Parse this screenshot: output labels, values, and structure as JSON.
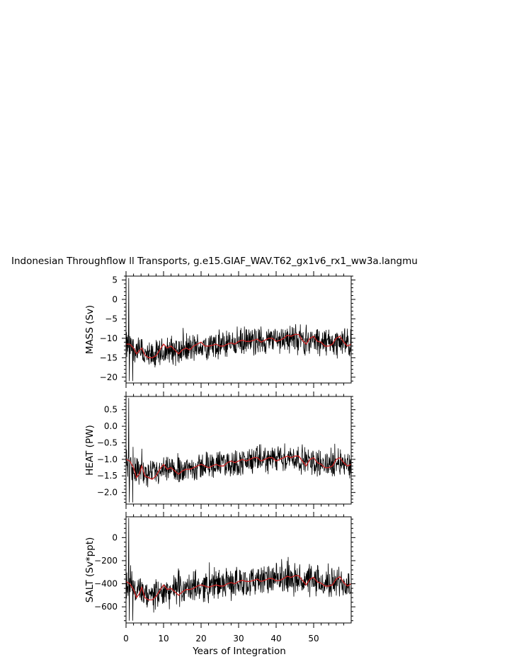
{
  "figure": {
    "title": "Indonesian Throughflow ll Transports, g.e15.GIAF_WAV.T62_gx1v6_rx1_ww3a.langmu",
    "xlabel": "Years of Integration"
  },
  "colors": {
    "raw": "#000000",
    "smooth": "#cc2222",
    "frame": "#000000",
    "background": "#ffffff"
  },
  "chart_data": [
    {
      "type": "line",
      "panel": "mass",
      "ylabel": "MASS (Sv)",
      "xlim": [
        0,
        60
      ],
      "ylim": [
        -21.5,
        6
      ],
      "xticks": [
        0,
        10,
        20,
        30,
        40,
        50
      ],
      "yticks": [
        5,
        0,
        -5,
        -10,
        -15,
        -20
      ],
      "ytick_labels": [
        "5",
        "0",
        "−5",
        "−10",
        "−15",
        "−20"
      ],
      "grid": false,
      "series": [
        {
          "style": "raw-monthly",
          "color": "#000000",
          "base": [
            [
              0,
              -12
            ],
            [
              3,
              -13
            ],
            [
              6,
              -15
            ],
            [
              9,
              -14
            ],
            [
              12,
              -13
            ],
            [
              15,
              -13
            ],
            [
              18,
              -12.5
            ],
            [
              21,
              -12
            ],
            [
              24,
              -12
            ],
            [
              27,
              -11.5
            ],
            [
              30,
              -11
            ],
            [
              33,
              -11
            ],
            [
              36,
              -10.5
            ],
            [
              39,
              -10.5
            ],
            [
              42,
              -10
            ],
            [
              45,
              -10
            ],
            [
              48,
              -10.5
            ],
            [
              51,
              -11
            ],
            [
              54,
              -11
            ],
            [
              57,
              -11
            ],
            [
              60,
              -11.5
            ]
          ],
          "amplitude": 4.5,
          "spikes": [
            [
              0.7,
              5.5
            ],
            [
              0.9,
              -21
            ],
            [
              1.8,
              -21
            ]
          ]
        },
        {
          "style": "smoothed",
          "color": "#cc2222",
          "points": [
            [
              0,
              -11.5
            ],
            [
              1,
              -11.5
            ],
            [
              2,
              -12.5
            ],
            [
              2.8,
              -14
            ],
            [
              3.5,
              -13.2
            ],
            [
              4.2,
              -12.5
            ],
            [
              5,
              -14.3
            ],
            [
              6,
              -15
            ],
            [
              7,
              -15
            ],
            [
              8,
              -14.5
            ],
            [
              9,
              -13
            ],
            [
              10,
              -11.5
            ],
            [
              11,
              -12.5
            ],
            [
              12,
              -12
            ],
            [
              13,
              -13
            ],
            [
              14,
              -14
            ],
            [
              15,
              -13
            ],
            [
              16,
              -12.5
            ],
            [
              17,
              -13
            ],
            [
              18,
              -12
            ],
            [
              19,
              -11.5
            ],
            [
              20,
              -11
            ],
            [
              21,
              -12
            ],
            [
              22,
              -12
            ],
            [
              23,
              -11.8
            ],
            [
              24,
              -11.5
            ],
            [
              25,
              -12
            ],
            [
              26,
              -12
            ],
            [
              27,
              -11.5
            ],
            [
              28,
              -11.2
            ],
            [
              29,
              -11.5
            ],
            [
              30,
              -10.8
            ],
            [
              31,
              -10.5
            ],
            [
              32,
              -10.8
            ],
            [
              33,
              -10.8
            ],
            [
              34,
              -10.5
            ],
            [
              35,
              -10.2
            ],
            [
              36,
              -11
            ],
            [
              37,
              -10.5
            ],
            [
              38,
              -10
            ],
            [
              39,
              -10
            ],
            [
              40,
              -10.8
            ],
            [
              41,
              -10.5
            ],
            [
              42,
              -10
            ],
            [
              43,
              -9.2
            ],
            [
              44,
              -9.5
            ],
            [
              45,
              -9
            ],
            [
              46,
              -9
            ],
            [
              47,
              -10.5
            ],
            [
              48,
              -11.5
            ],
            [
              49,
              -10
            ],
            [
              50,
              -9.5
            ],
            [
              51,
              -10.8
            ],
            [
              52,
              -11
            ],
            [
              53,
              -12
            ],
            [
              54,
              -12
            ],
            [
              55,
              -11.5
            ],
            [
              56,
              -10
            ],
            [
              57,
              -9.5
            ],
            [
              58,
              -11
            ],
            [
              59,
              -12
            ],
            [
              60,
              -11.5
            ]
          ]
        }
      ]
    },
    {
      "type": "line",
      "panel": "heat",
      "ylabel": "HEAT (PW)",
      "xlim": [
        0,
        60
      ],
      "ylim": [
        -2.35,
        0.9
      ],
      "xticks": [
        0,
        10,
        20,
        30,
        40,
        50
      ],
      "yticks": [
        0.5,
        0.0,
        -0.5,
        -1.0,
        -1.5,
        -2.0
      ],
      "ytick_labels": [
        "0.5",
        "0.0",
        "−0.5",
        "−1.0",
        "−1.5",
        "−2.0"
      ],
      "grid": false,
      "series": [
        {
          "style": "raw-monthly",
          "color": "#000000",
          "base": [
            [
              0,
              -1.1
            ],
            [
              3,
              -1.3
            ],
            [
              6,
              -1.5
            ],
            [
              9,
              -1.4
            ],
            [
              12,
              -1.35
            ],
            [
              15,
              -1.3
            ],
            [
              18,
              -1.25
            ],
            [
              21,
              -1.2
            ],
            [
              24,
              -1.15
            ],
            [
              27,
              -1.15
            ],
            [
              30,
              -1.1
            ],
            [
              33,
              -1.05
            ],
            [
              36,
              -1.0
            ],
            [
              39,
              -1.0
            ],
            [
              42,
              -0.95
            ],
            [
              45,
              -0.95
            ],
            [
              48,
              -1.05
            ],
            [
              51,
              -1.1
            ],
            [
              54,
              -1.15
            ],
            [
              57,
              -1.05
            ],
            [
              60,
              -1.2
            ]
          ],
          "amplitude": 0.5,
          "spikes": [
            [
              0.7,
              0.85
            ],
            [
              0.9,
              -2.3
            ],
            [
              1.8,
              -2.3
            ]
          ]
        },
        {
          "style": "smoothed",
          "color": "#cc2222",
          "points": [
            [
              0,
              -1.0
            ],
            [
              1,
              -1.05
            ],
            [
              2,
              -1.25
            ],
            [
              2.8,
              -1.55
            ],
            [
              3.5,
              -1.45
            ],
            [
              4.2,
              -1.2
            ],
            [
              5,
              -1.5
            ],
            [
              6,
              -1.55
            ],
            [
              7,
              -1.6
            ],
            [
              8,
              -1.5
            ],
            [
              9,
              -1.3
            ],
            [
              10,
              -1.15
            ],
            [
              11,
              -1.3
            ],
            [
              12,
              -1.25
            ],
            [
              13,
              -1.35
            ],
            [
              14,
              -1.45
            ],
            [
              15,
              -1.35
            ],
            [
              16,
              -1.3
            ],
            [
              17,
              -1.3
            ],
            [
              18,
              -1.25
            ],
            [
              19,
              -1.2
            ],
            [
              20,
              -1.15
            ],
            [
              21,
              -1.2
            ],
            [
              22,
              -1.25
            ],
            [
              23,
              -1.2
            ],
            [
              24,
              -1.15
            ],
            [
              25,
              -1.2
            ],
            [
              26,
              -1.2
            ],
            [
              27,
              -1.1
            ],
            [
              28,
              -1.05
            ],
            [
              29,
              -1.1
            ],
            [
              30,
              -1.05
            ],
            [
              31,
              -1.0
            ],
            [
              32,
              -1.05
            ],
            [
              33,
              -1.0
            ],
            [
              34,
              -0.95
            ],
            [
              35,
              -0.95
            ],
            [
              36,
              -1.05
            ],
            [
              37,
              -1.0
            ],
            [
              38,
              -0.95
            ],
            [
              39,
              -0.95
            ],
            [
              40,
              -1.05
            ],
            [
              41,
              -1.0
            ],
            [
              42,
              -0.95
            ],
            [
              43,
              -0.9
            ],
            [
              44,
              -0.95
            ],
            [
              45,
              -0.9
            ],
            [
              46,
              -0.9
            ],
            [
              47,
              -1.05
            ],
            [
              48,
              -1.2
            ],
            [
              49,
              -1.0
            ],
            [
              50,
              -0.95
            ],
            [
              51,
              -1.1
            ],
            [
              52,
              -1.15
            ],
            [
              53,
              -1.25
            ],
            [
              54,
              -1.25
            ],
            [
              55,
              -1.2
            ],
            [
              56,
              -1.0
            ],
            [
              57,
              -0.95
            ],
            [
              58,
              -1.1
            ],
            [
              59,
              -1.2
            ],
            [
              60,
              -1.15
            ]
          ]
        }
      ]
    },
    {
      "type": "line",
      "panel": "salt",
      "ylabel": "SALT (Sv*ppt)",
      "xlim": [
        0,
        60
      ],
      "ylim": [
        -740,
        180
      ],
      "xticks": [
        0,
        10,
        20,
        30,
        40,
        50
      ],
      "xtick_labels": [
        "0",
        "10",
        "20",
        "30",
        "40",
        "50"
      ],
      "yticks": [
        0,
        -200,
        -400,
        -600
      ],
      "ytick_labels": [
        "0",
        "−200",
        "−400",
        "−600"
      ],
      "grid": false,
      "series": [
        {
          "style": "raw-monthly",
          "color": "#000000",
          "base": [
            [
              0,
              -410
            ],
            [
              3,
              -460
            ],
            [
              6,
              -520
            ],
            [
              9,
              -490
            ],
            [
              12,
              -460
            ],
            [
              15,
              -450
            ],
            [
              18,
              -440
            ],
            [
              21,
              -420
            ],
            [
              24,
              -410
            ],
            [
              27,
              -400
            ],
            [
              30,
              -390
            ],
            [
              33,
              -380
            ],
            [
              36,
              -370
            ],
            [
              39,
              -370
            ],
            [
              42,
              -360
            ],
            [
              45,
              -360
            ],
            [
              48,
              -380
            ],
            [
              51,
              -390
            ],
            [
              54,
              -400
            ],
            [
              57,
              -380
            ],
            [
              60,
              -410
            ]
          ],
          "amplitude": 160,
          "spikes": [
            [
              0.7,
              170
            ],
            [
              0.9,
              -720
            ],
            [
              1.8,
              -720
            ]
          ]
        },
        {
          "style": "smoothed",
          "color": "#cc2222",
          "points": [
            [
              0,
              -380
            ],
            [
              1,
              -400
            ],
            [
              2,
              -450
            ],
            [
              2.8,
              -520
            ],
            [
              3.5,
              -490
            ],
            [
              4.2,
              -430
            ],
            [
              5,
              -520
            ],
            [
              6,
              -540
            ],
            [
              7,
              -540
            ],
            [
              8,
              -510
            ],
            [
              9,
              -460
            ],
            [
              10,
              -410
            ],
            [
              11,
              -450
            ],
            [
              12,
              -440
            ],
            [
              13,
              -470
            ],
            [
              14,
              -500
            ],
            [
              15,
              -470
            ],
            [
              16,
              -450
            ],
            [
              17,
              -450
            ],
            [
              18,
              -440
            ],
            [
              19,
              -420
            ],
            [
              20,
              -410
            ],
            [
              21,
              -420
            ],
            [
              22,
              -430
            ],
            [
              23,
              -420
            ],
            [
              24,
              -410
            ],
            [
              25,
              -420
            ],
            [
              26,
              -420
            ],
            [
              27,
              -400
            ],
            [
              28,
              -390
            ],
            [
              29,
              -400
            ],
            [
              30,
              -380
            ],
            [
              31,
              -370
            ],
            [
              32,
              -380
            ],
            [
              33,
              -380
            ],
            [
              34,
              -370
            ],
            [
              35,
              -360
            ],
            [
              36,
              -380
            ],
            [
              37,
              -370
            ],
            [
              38,
              -355
            ],
            [
              39,
              -355
            ],
            [
              40,
              -375
            ],
            [
              41,
              -370
            ],
            [
              42,
              -355
            ],
            [
              43,
              -335
            ],
            [
              44,
              -345
            ],
            [
              45,
              -330
            ],
            [
              46,
              -330
            ],
            [
              47,
              -370
            ],
            [
              48,
              -410
            ],
            [
              49,
              -360
            ],
            [
              50,
              -345
            ],
            [
              51,
              -385
            ],
            [
              52,
              -395
            ],
            [
              53,
              -420
            ],
            [
              54,
              -420
            ],
            [
              55,
              -410
            ],
            [
              56,
              -360
            ],
            [
              57,
              -340
            ],
            [
              58,
              -390
            ],
            [
              59,
              -420
            ],
            [
              60,
              -400
            ]
          ]
        }
      ]
    }
  ]
}
